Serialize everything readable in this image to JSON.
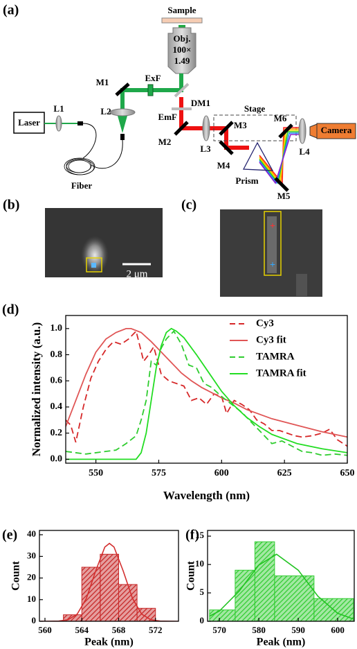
{
  "diagram": {
    "panel_label": "(a)",
    "labels": {
      "sample": "Sample",
      "obj": "Obj.",
      "mag": "100×",
      "na": "1.49",
      "exf": "ExF",
      "m1": "M1",
      "dm1": "DM1",
      "laser": "Laser",
      "l1": "L1",
      "l2": "L2",
      "fiber": "Fiber",
      "emf": "EmF",
      "stage": "Stage",
      "m2": "M2",
      "l3": "L3",
      "m3": "M3",
      "m4": "M4",
      "prism": "Prism",
      "m5": "M5",
      "m6": "M6",
      "l4": "L4",
      "camera": "Camera"
    }
  },
  "panels": {
    "b": {
      "label": "(b)",
      "scale_bar": "2 μm"
    },
    "c": {
      "label": "(c)"
    }
  },
  "chart_data": [
    {
      "type": "line",
      "panel_label": "(d)",
      "x_label": "Wavelength (nm)",
      "y_label": "Normalized intensity (a.u.)",
      "xlim": [
        538,
        650
      ],
      "ylim": [
        -0.03,
        1.1
      ],
      "xticks": [
        550,
        575,
        600,
        625,
        650
      ],
      "yticks": [
        {
          "value": 0,
          "label": "0.0"
        },
        0.2,
        0.4,
        0.6,
        0.8,
        {
          "value": 1,
          "label": "1.0"
        }
      ],
      "legend": "upper right",
      "series": [
        {
          "name": "Cy3",
          "color": "#d62728",
          "dashed": true,
          "x": [
            538,
            540,
            542,
            545,
            548,
            551,
            554,
            557,
            560,
            563,
            566,
            569,
            571,
            573,
            576,
            579,
            582,
            585,
            588,
            591,
            594,
            597,
            600,
            602,
            605,
            608,
            611,
            614,
            617,
            620,
            623,
            626,
            629,
            632,
            636,
            640,
            643,
            646,
            650
          ],
          "values": [
            0.3,
            0.26,
            0.13,
            0.4,
            0.62,
            0.75,
            0.84,
            0.9,
            0.88,
            0.92,
            0.98,
            0.75,
            0.8,
            0.86,
            0.65,
            0.6,
            0.58,
            0.56,
            0.45,
            0.47,
            0.42,
            0.5,
            0.48,
            0.35,
            0.45,
            0.42,
            0.38,
            0.3,
            0.27,
            0.22,
            0.22,
            0.2,
            0.18,
            0.17,
            0.18,
            0.2,
            0.23,
            0.15,
            0.1
          ]
        },
        {
          "name": "Cy3 fit",
          "color": "#e05555",
          "dashed": false,
          "x": [
            538,
            542,
            546,
            550,
            554,
            558,
            562,
            564,
            568,
            572,
            576,
            580,
            584,
            588,
            592,
            596,
            600,
            605,
            610,
            620,
            630,
            640,
            650
          ],
          "values": [
            0.25,
            0.45,
            0.65,
            0.82,
            0.92,
            0.97,
            1.0,
            1.0,
            0.97,
            0.9,
            0.82,
            0.74,
            0.66,
            0.6,
            0.55,
            0.51,
            0.47,
            0.43,
            0.38,
            0.31,
            0.26,
            0.21,
            0.17
          ]
        },
        {
          "name": "TAMRA",
          "color": "#2ecc2e",
          "dashed": true,
          "x": [
            538,
            542,
            546,
            550,
            554,
            558,
            562,
            566,
            568,
            570,
            572,
            574,
            576,
            578,
            581,
            584,
            587,
            590,
            593,
            596,
            600,
            604,
            608,
            612,
            616,
            620,
            624,
            628,
            632,
            636,
            640,
            645,
            650
          ],
          "values": [
            0.06,
            0.05,
            0.04,
            0.05,
            0.06,
            0.07,
            0.12,
            0.18,
            0.3,
            0.45,
            0.75,
            0.72,
            0.85,
            0.92,
            0.98,
            0.88,
            0.72,
            0.7,
            0.58,
            0.55,
            0.48,
            0.42,
            0.36,
            0.28,
            0.2,
            0.12,
            0.14,
            0.1,
            0.06,
            0.05,
            0.03,
            0.04,
            0.03
          ]
        },
        {
          "name": "TAMRA fit",
          "color": "#22dd22",
          "dashed": false,
          "x": [
            538,
            566,
            568,
            570,
            572,
            574,
            576,
            578,
            580,
            582,
            585,
            590,
            595,
            600,
            605,
            610,
            615,
            620,
            630,
            640,
            650
          ],
          "values": [
            0,
            0,
            0.05,
            0.2,
            0.45,
            0.7,
            0.87,
            0.97,
            1.0,
            0.98,
            0.93,
            0.8,
            0.66,
            0.52,
            0.41,
            0.32,
            0.25,
            0.19,
            0.12,
            0.08,
            0.05
          ]
        }
      ]
    },
    {
      "type": "histogram",
      "panel_label": "(e)",
      "x_label": "Peak (nm)",
      "y_label": "Count",
      "xlim": [
        559.4,
        574.5
      ],
      "ylim": [
        0,
        42
      ],
      "xticks": [
        560,
        564,
        568,
        572
      ],
      "yticks": [
        0,
        10,
        20,
        30,
        40
      ],
      "bins": [
        562,
        564,
        566,
        568,
        570,
        572
      ],
      "values": [
        3,
        25,
        31,
        17,
        6
      ],
      "color": "#c62828",
      "fit": {
        "color": "#d32f2f",
        "x": [
          559.5,
          560.5,
          561.5,
          562.5,
          563.5,
          564.5,
          565.5,
          566.5,
          567,
          567.5,
          568.5,
          569.5,
          570.5,
          571.5,
          572.5,
          573.5,
          574.5
        ],
        "values": [
          0,
          0.01,
          0.1,
          0.69,
          3.3,
          10.6,
          23.2,
          34.3,
          36,
          34.3,
          23.2,
          10.6,
          3.3,
          0.69,
          0.1,
          0.01,
          0
        ]
      }
    },
    {
      "type": "histogram",
      "panel_label": "(f)",
      "x_label": "Peak (nm)",
      "y_label": "Count",
      "xlim": [
        567,
        604.2
      ],
      "ylim": [
        0,
        16
      ],
      "xticks": [
        570,
        580,
        590,
        600
      ],
      "yticks": [
        0,
        5,
        10,
        15
      ],
      "bins": [
        567.5,
        574,
        579,
        584,
        594,
        604
      ],
      "values": [
        2,
        9,
        14,
        8,
        4
      ],
      "color": "#33cc33",
      "fit": {
        "color": "#22c322",
        "x": [
          567.5,
          570,
          575,
          580,
          584.5,
          590,
          595,
          600,
          604
        ],
        "values": [
          0.9,
          1.8,
          5.3,
          9.9,
          11.8,
          9.0,
          4.4,
          1.4,
          0.4
        ]
      }
    }
  ]
}
